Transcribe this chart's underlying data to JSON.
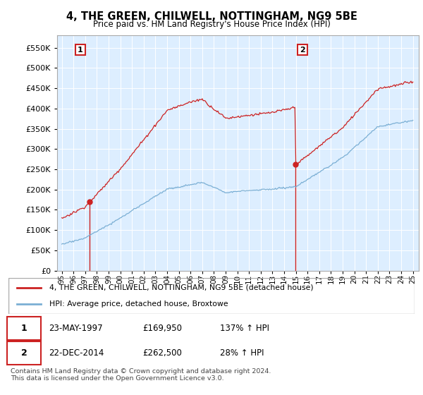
{
  "title": "4, THE GREEN, CHILWELL, NOTTINGHAM, NG9 5BE",
  "subtitle": "Price paid vs. HM Land Registry's House Price Index (HPI)",
  "sale1_date": "23-MAY-1997",
  "sale1_price": 169950,
  "sale2_date": "22-DEC-2014",
  "sale2_price": 262500,
  "legend_line1": "4, THE GREEN, CHILWELL, NOTTINGHAM, NG9 5BE (detached house)",
  "legend_line2": "HPI: Average price, detached house, Broxtowe",
  "footer": "Contains HM Land Registry data © Crown copyright and database right 2024.\nThis data is licensed under the Open Government Licence v3.0.",
  "table_row1": [
    "1",
    "23-MAY-1997",
    "£169,950",
    "137% ↑ HPI"
  ],
  "table_row2": [
    "2",
    "22-DEC-2014",
    "£262,500",
    "28% ↑ HPI"
  ],
  "hpi_color": "#7bafd4",
  "price_color": "#cc2222",
  "vline_color": "#cc2222",
  "plot_bg_color": "#ddeeff",
  "background_color": "#ffffff",
  "grid_color": "#ffffff",
  "ylim": [
    0,
    580000
  ],
  "yticks": [
    0,
    50000,
    100000,
    150000,
    200000,
    250000,
    300000,
    350000,
    400000,
    450000,
    500000,
    550000
  ],
  "sale1_t": 1997.38,
  "sale2_t": 2014.96
}
